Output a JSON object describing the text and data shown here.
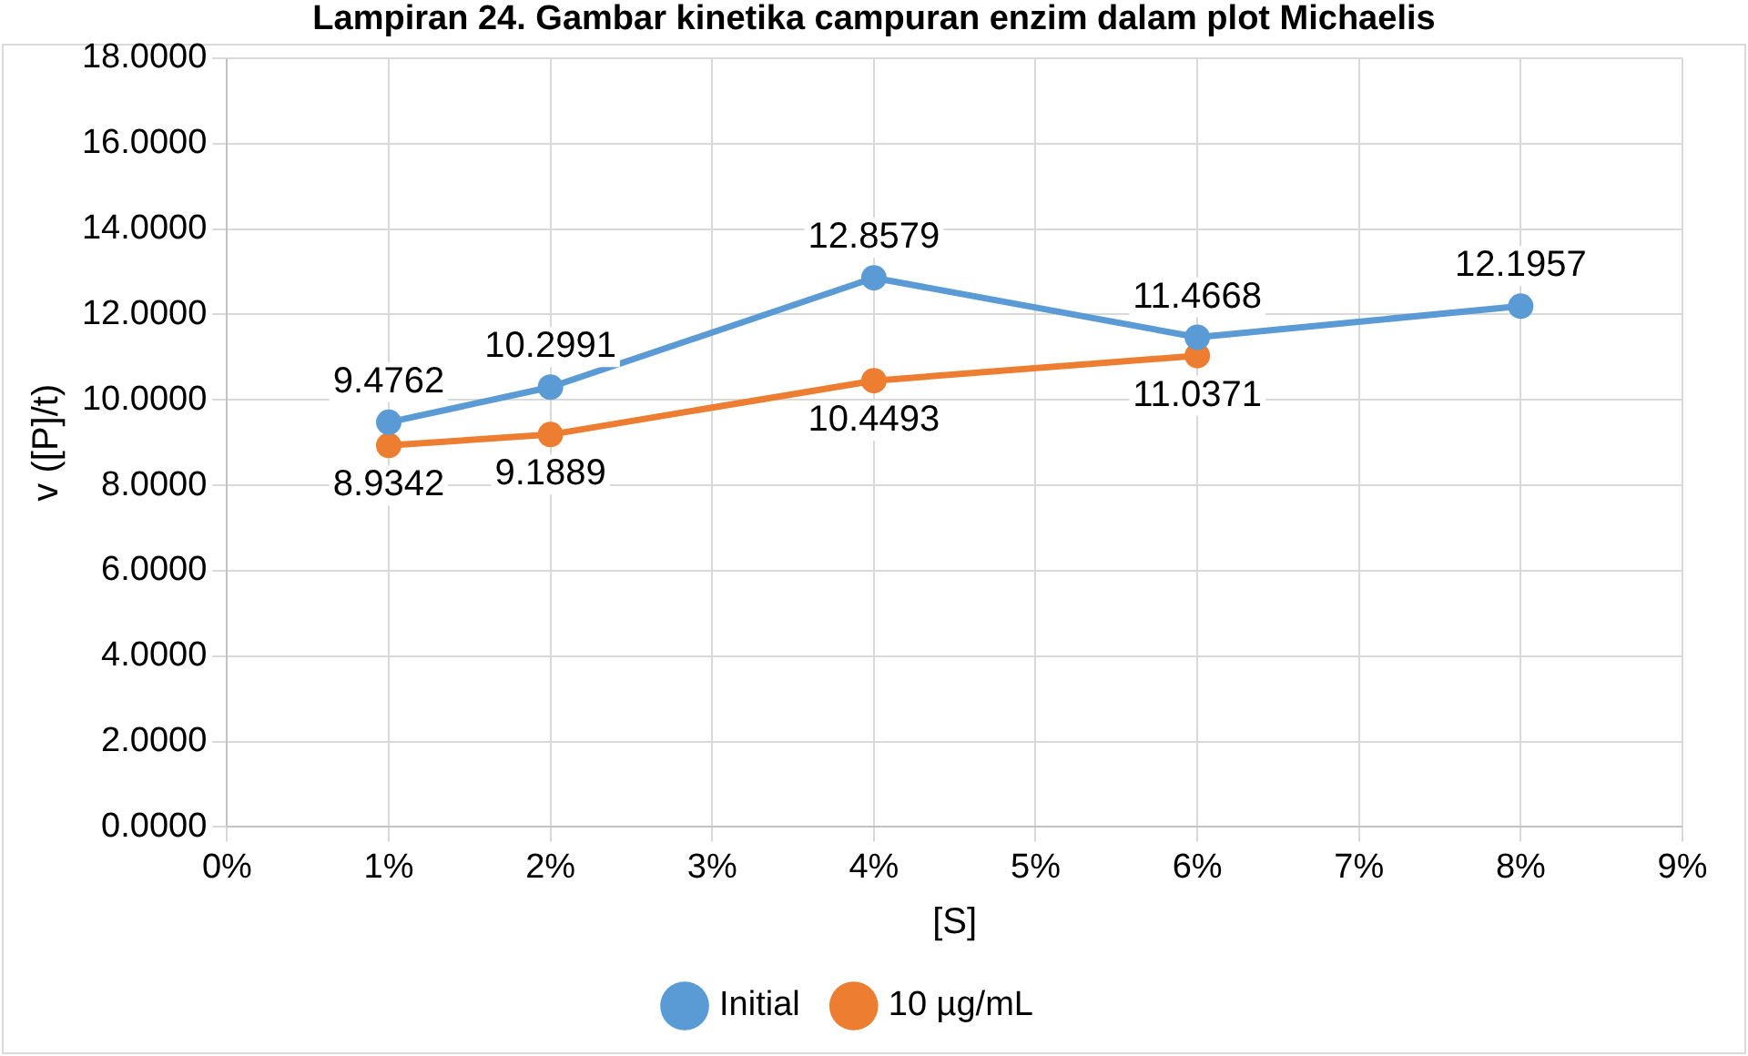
{
  "chart_data": {
    "type": "line",
    "title": "Lampiran 24. Gambar kinetika campuran enzim dalam plot Michaelis",
    "xlabel": "[S]",
    "ylabel": "v ([P]/t)",
    "series": [
      {
        "name": "Initial",
        "color": "#5b9bd5",
        "x": [
          1,
          2,
          4,
          6,
          8
        ],
        "values": [
          9.4762,
          10.2991,
          12.8579,
          11.4668,
          12.1957
        ]
      },
      {
        "name": "10 µg/mL",
        "color": "#ed7d31",
        "x": [
          1,
          2,
          4,
          6
        ],
        "values": [
          8.9342,
          9.1889,
          10.4493,
          11.0371
        ]
      }
    ],
    "xlim": [
      0,
      9
    ],
    "xticks": [
      {
        "value": 0,
        "label": "0%"
      },
      {
        "value": 1,
        "label": "1%"
      },
      {
        "value": 2,
        "label": "2%"
      },
      {
        "value": 3,
        "label": "3%"
      },
      {
        "value": 4,
        "label": "4%"
      },
      {
        "value": 5,
        "label": "5%"
      },
      {
        "value": 6,
        "label": "6%"
      },
      {
        "value": 7,
        "label": "7%"
      },
      {
        "value": 8,
        "label": "8%"
      },
      {
        "value": 9,
        "label": "9%"
      }
    ],
    "ylim": [
      0,
      18
    ],
    "yticks": [
      {
        "value": 0,
        "label": "0.0000"
      },
      {
        "value": 2,
        "label": "2.0000"
      },
      {
        "value": 4,
        "label": "4.0000"
      },
      {
        "value": 6,
        "label": "6.0000"
      },
      {
        "value": 8,
        "label": "8.0000"
      },
      {
        "value": 10,
        "label": "10.0000"
      },
      {
        "value": 12,
        "label": "12.0000"
      },
      {
        "value": 14,
        "label": "14.0000"
      },
      {
        "value": 16,
        "label": "16.0000"
      },
      {
        "value": 18,
        "label": "18.0000"
      }
    ],
    "grid": true,
    "legend": "bottom",
    "marker": "circle",
    "line_style": "solid",
    "data_labels": true
  }
}
